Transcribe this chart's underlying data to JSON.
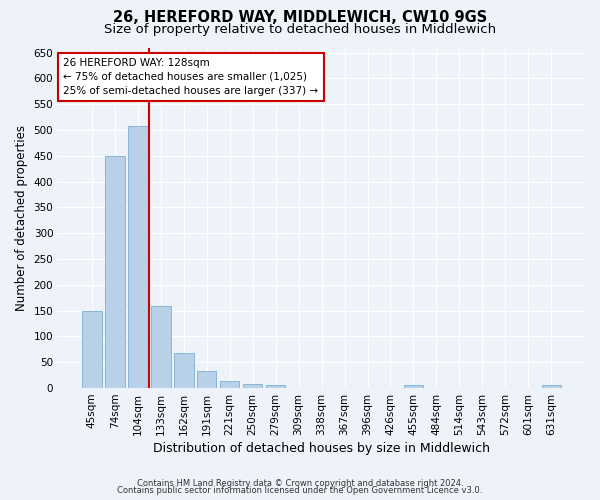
{
  "title1": "26, HEREFORD WAY, MIDDLEWICH, CW10 9GS",
  "title2": "Size of property relative to detached houses in Middlewich",
  "xlabel": "Distribution of detached houses by size in Middlewich",
  "ylabel": "Number of detached properties",
  "categories": [
    "45sqm",
    "74sqm",
    "104sqm",
    "133sqm",
    "162sqm",
    "191sqm",
    "221sqm",
    "250sqm",
    "279sqm",
    "309sqm",
    "338sqm",
    "367sqm",
    "396sqm",
    "426sqm",
    "455sqm",
    "484sqm",
    "514sqm",
    "543sqm",
    "572sqm",
    "601sqm",
    "631sqm"
  ],
  "values": [
    150,
    450,
    507,
    160,
    68,
    33,
    13,
    8,
    5,
    0,
    0,
    0,
    0,
    0,
    6,
    0,
    0,
    0,
    0,
    0,
    5
  ],
  "bar_color": "#b8d0e8",
  "bar_edge_color": "#7aafd4",
  "red_line_index": 3,
  "red_line_label": "26 HEREFORD WAY: 128sqm",
  "annotation_line2": "← 75% of detached houses are smaller (1,025)",
  "annotation_line3": "25% of semi-detached houses are larger (337) →",
  "annotation_box_color": "#ffffff",
  "annotation_box_edge_color": "#cc0000",
  "ylim": [
    0,
    660
  ],
  "yticks": [
    0,
    50,
    100,
    150,
    200,
    250,
    300,
    350,
    400,
    450,
    500,
    550,
    600,
    650
  ],
  "footer_line1": "Contains HM Land Registry data © Crown copyright and database right 2024.",
  "footer_line2": "Contains public sector information licensed under the Open Government Licence v3.0.",
  "background_color": "#eef2f9",
  "grid_color": "#ffffff",
  "title1_fontsize": 10.5,
  "title2_fontsize": 9.5,
  "tick_fontsize": 7.5,
  "ylabel_fontsize": 8.5,
  "xlabel_fontsize": 9,
  "footer_fontsize": 6,
  "annotation_fontsize": 7.5
}
